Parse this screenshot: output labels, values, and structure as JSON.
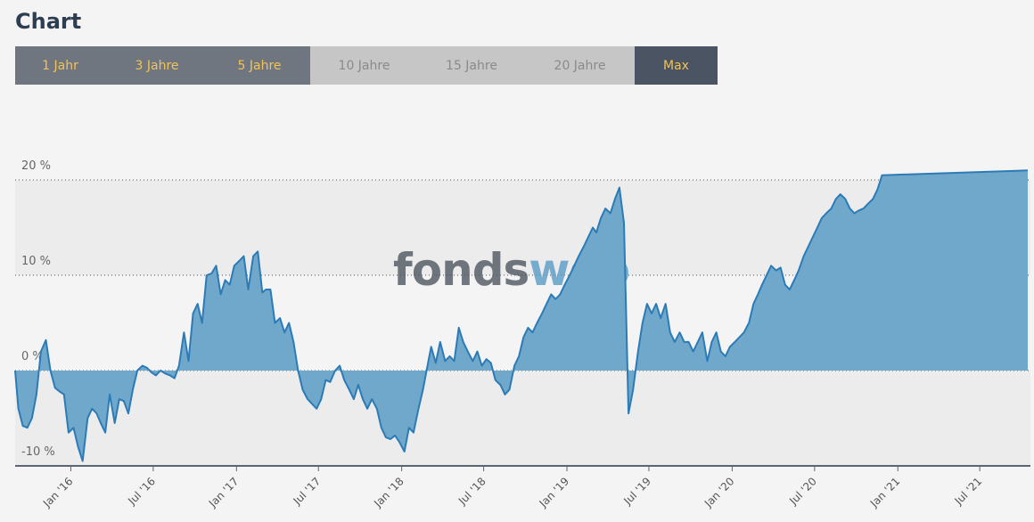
{
  "heading": "Chart",
  "tabs": [
    {
      "label": "1 Jahr",
      "state": "enabled"
    },
    {
      "label": "3 Jahre",
      "state": "enabled"
    },
    {
      "label": "5 Jahre",
      "state": "enabled"
    },
    {
      "label": "10 Jahre",
      "state": "disabled"
    },
    {
      "label": "15 Jahre",
      "state": "disabled"
    },
    {
      "label": "20 Jahre",
      "state": "disabled"
    },
    {
      "label": "Max",
      "state": "active"
    }
  ],
  "watermark": {
    "part1": "fonds",
    "part2": "web"
  },
  "colors": {
    "fill": "#6fa8cb",
    "line": "#2c7bb6",
    "accent": "#f0c35a",
    "tab_active": "#4a5462"
  },
  "chart_data": {
    "type": "area",
    "title": "",
    "xlabel": "",
    "ylabel": "",
    "ylim": [
      -10,
      20
    ],
    "y_ticks": [
      -10,
      0,
      10,
      20
    ],
    "y_tick_labels": [
      "-10 %",
      "0 %",
      "10 %",
      "20 %"
    ],
    "x_tick_labels": [
      "Jan '16",
      "Jul '16",
      "Jan '17",
      "Jul '17",
      "Jan '18",
      "Jul '18",
      "Jan '19",
      "Jul '19",
      "Jan '20",
      "Jul '20",
      "Jan '21",
      "Jul '21"
    ],
    "x_tick_dates": [
      "2016-01-01",
      "2016-07-01",
      "2017-01-01",
      "2017-07-01",
      "2018-01-01",
      "2018-07-01",
      "2019-01-01",
      "2019-07-01",
      "2020-01-01",
      "2020-07-01",
      "2021-01-01",
      "2021-07-01"
    ],
    "x_range": [
      "2015-08-31",
      "2021-10-15"
    ],
    "grid": "dotted horizontal",
    "series": [
      {
        "points": [
          [
            "2015-08-31",
            0
          ],
          [
            "2015-09-07",
            -4
          ],
          [
            "2015-09-17",
            -5.8
          ],
          [
            "2015-09-27",
            -6
          ],
          [
            "2015-10-07",
            -5
          ],
          [
            "2015-10-17",
            -2.5
          ],
          [
            "2015-10-27",
            2
          ],
          [
            "2015-11-07",
            3.2
          ],
          [
            "2015-11-17",
            0
          ],
          [
            "2015-11-27",
            -1.8
          ],
          [
            "2015-12-07",
            -2.2
          ],
          [
            "2015-12-17",
            -2.5
          ],
          [
            "2015-12-27",
            -6.5
          ],
          [
            "2016-01-07",
            -6
          ],
          [
            "2016-01-17",
            -8
          ],
          [
            "2016-01-27",
            -9.5
          ],
          [
            "2016-02-07",
            -5
          ],
          [
            "2016-02-17",
            -4
          ],
          [
            "2016-02-27",
            -4.5
          ],
          [
            "2016-03-07",
            -5.5
          ],
          [
            "2016-03-17",
            -6.5
          ],
          [
            "2016-03-27",
            -2.5
          ],
          [
            "2016-04-07",
            -5.5
          ],
          [
            "2016-04-17",
            -3
          ],
          [
            "2016-04-27",
            -3.2
          ],
          [
            "2016-05-07",
            -4.5
          ],
          [
            "2016-05-17",
            -2
          ],
          [
            "2016-05-27",
            0
          ],
          [
            "2016-06-07",
            0.5
          ],
          [
            "2016-06-17",
            0.3
          ],
          [
            "2016-06-27",
            -0.2
          ],
          [
            "2016-07-07",
            -0.5
          ],
          [
            "2016-07-17",
            0
          ],
          [
            "2016-07-27",
            -0.3
          ],
          [
            "2016-08-07",
            -0.5
          ],
          [
            "2016-08-17",
            -0.8
          ],
          [
            "2016-08-27",
            0.5
          ],
          [
            "2016-09-07",
            4
          ],
          [
            "2016-09-17",
            1
          ],
          [
            "2016-09-27",
            6
          ],
          [
            "2016-10-07",
            7
          ],
          [
            "2016-10-17",
            5
          ],
          [
            "2016-10-27",
            10
          ],
          [
            "2016-11-07",
            10.2
          ],
          [
            "2016-11-17",
            11
          ],
          [
            "2016-11-27",
            8
          ],
          [
            "2016-12-07",
            9.5
          ],
          [
            "2016-12-17",
            9
          ],
          [
            "2016-12-27",
            11
          ],
          [
            "2017-01-07",
            11.5
          ],
          [
            "2017-01-17",
            12
          ],
          [
            "2017-01-27",
            8.5
          ],
          [
            "2017-02-07",
            12
          ],
          [
            "2017-02-17",
            12.5
          ],
          [
            "2017-02-27",
            8.2
          ],
          [
            "2017-03-07",
            8.5
          ],
          [
            "2017-03-17",
            8.5
          ],
          [
            "2017-03-27",
            5
          ],
          [
            "2017-04-07",
            5.5
          ],
          [
            "2017-04-17",
            4
          ],
          [
            "2017-04-27",
            5
          ],
          [
            "2017-05-07",
            3
          ],
          [
            "2017-05-17",
            0
          ],
          [
            "2017-05-27",
            -2
          ],
          [
            "2017-06-07",
            -3
          ],
          [
            "2017-06-17",
            -3.5
          ],
          [
            "2017-06-27",
            -4
          ],
          [
            "2017-07-07",
            -3
          ],
          [
            "2017-07-17",
            -1
          ],
          [
            "2017-07-27",
            -1.2
          ],
          [
            "2017-08-07",
            0
          ],
          [
            "2017-08-17",
            0.5
          ],
          [
            "2017-08-27",
            -1
          ],
          [
            "2017-09-07",
            -2
          ],
          [
            "2017-09-17",
            -3
          ],
          [
            "2017-09-27",
            -1.5
          ],
          [
            "2017-10-07",
            -3
          ],
          [
            "2017-10-17",
            -4
          ],
          [
            "2017-10-27",
            -3
          ],
          [
            "2017-11-07",
            -4
          ],
          [
            "2017-11-17",
            -6
          ],
          [
            "2017-11-27",
            -7
          ],
          [
            "2017-12-07",
            -7.2
          ],
          [
            "2017-12-17",
            -6.8
          ],
          [
            "2017-12-27",
            -7.5
          ],
          [
            "2018-01-07",
            -8.5
          ],
          [
            "2018-01-17",
            -6
          ],
          [
            "2018-01-27",
            -6.5
          ],
          [
            "2018-02-07",
            -4
          ],
          [
            "2018-02-17",
            -2
          ],
          [
            "2018-02-27",
            0.5
          ],
          [
            "2018-03-07",
            2.5
          ],
          [
            "2018-03-17",
            0.8
          ],
          [
            "2018-03-27",
            3
          ],
          [
            "2018-04-07",
            1
          ],
          [
            "2018-04-17",
            1.5
          ],
          [
            "2018-04-27",
            1
          ],
          [
            "2018-05-07",
            4.5
          ],
          [
            "2018-05-17",
            3
          ],
          [
            "2018-05-27",
            2
          ],
          [
            "2018-06-07",
            1
          ],
          [
            "2018-06-17",
            2
          ],
          [
            "2018-06-27",
            0.5
          ],
          [
            "2018-07-07",
            1.2
          ],
          [
            "2018-07-17",
            0.8
          ],
          [
            "2018-07-27",
            -1
          ],
          [
            "2018-08-07",
            -1.5
          ],
          [
            "2018-08-17",
            -2.5
          ],
          [
            "2018-08-27",
            -2
          ],
          [
            "2018-09-07",
            0.5
          ],
          [
            "2018-09-17",
            1.5
          ],
          [
            "2018-09-27",
            3.5
          ],
          [
            "2018-10-07",
            4.5
          ],
          [
            "2018-10-17",
            4
          ],
          [
            "2018-10-27",
            5
          ],
          [
            "2018-11-07",
            6
          ],
          [
            "2018-11-17",
            7
          ],
          [
            "2018-11-27",
            8
          ],
          [
            "2018-12-07",
            7.5
          ],
          [
            "2018-12-17",
            8
          ],
          [
            "2018-12-27",
            9
          ],
          [
            "2019-01-07",
            10
          ],
          [
            "2019-01-17",
            11
          ],
          [
            "2019-01-27",
            12
          ],
          [
            "2019-02-07",
            13
          ],
          [
            "2019-02-17",
            14
          ],
          [
            "2019-02-27",
            15
          ],
          [
            "2019-03-07",
            14.5
          ],
          [
            "2019-03-17",
            16
          ],
          [
            "2019-03-27",
            17
          ],
          [
            "2019-04-07",
            16.5
          ],
          [
            "2019-04-17",
            18
          ],
          [
            "2019-04-27",
            19.2
          ],
          [
            "2019-05-07",
            15.5
          ],
          [
            "2019-05-17",
            -4.5
          ],
          [
            "2019-05-27",
            -2
          ],
          [
            "2019-06-07",
            2
          ],
          [
            "2019-06-17",
            5
          ],
          [
            "2019-06-27",
            7
          ],
          [
            "2019-07-07",
            6
          ],
          [
            "2019-07-17",
            7
          ],
          [
            "2019-07-27",
            5.5
          ],
          [
            "2019-08-07",
            7
          ],
          [
            "2019-08-17",
            4
          ],
          [
            "2019-08-27",
            3
          ],
          [
            "2019-09-07",
            4
          ],
          [
            "2019-09-17",
            3
          ],
          [
            "2019-09-27",
            3
          ],
          [
            "2019-10-07",
            2
          ],
          [
            "2019-10-17",
            3
          ],
          [
            "2019-10-27",
            4
          ],
          [
            "2019-11-07",
            1
          ],
          [
            "2019-11-17",
            3
          ],
          [
            "2019-11-27",
            4
          ],
          [
            "2019-12-07",
            2
          ],
          [
            "2019-12-17",
            1.5
          ],
          [
            "2019-12-27",
            2.5
          ],
          [
            "2020-01-07",
            3
          ],
          [
            "2020-01-17",
            3.5
          ],
          [
            "2020-01-27",
            4
          ],
          [
            "2020-02-07",
            5
          ],
          [
            "2020-02-17",
            7
          ],
          [
            "2020-02-27",
            8
          ],
          [
            "2020-03-07",
            9
          ],
          [
            "2020-03-17",
            10
          ],
          [
            "2020-03-27",
            11
          ],
          [
            "2020-04-07",
            10.5
          ],
          [
            "2020-04-17",
            10.8
          ],
          [
            "2020-04-27",
            9
          ],
          [
            "2020-05-07",
            8.5
          ],
          [
            "2020-05-17",
            9.5
          ],
          [
            "2020-05-27",
            10.5
          ],
          [
            "2020-06-07",
            12
          ],
          [
            "2020-06-17",
            13
          ],
          [
            "2020-06-27",
            14
          ],
          [
            "2020-07-07",
            15
          ],
          [
            "2020-07-17",
            16
          ],
          [
            "2020-07-27",
            16.5
          ],
          [
            "2020-08-07",
            17
          ],
          [
            "2020-08-17",
            18
          ],
          [
            "2020-08-27",
            18.5
          ],
          [
            "2020-09-07",
            18
          ],
          [
            "2020-09-17",
            17
          ],
          [
            "2020-09-27",
            16.5
          ],
          [
            "2020-10-07",
            16.8
          ],
          [
            "2020-10-17",
            17
          ],
          [
            "2020-10-27",
            17.5
          ],
          [
            "2020-11-07",
            18
          ],
          [
            "2020-11-17",
            19
          ],
          [
            "2020-11-27",
            20.5
          ],
          [
            "2021-10-15",
            21
          ]
        ]
      }
    ]
  }
}
